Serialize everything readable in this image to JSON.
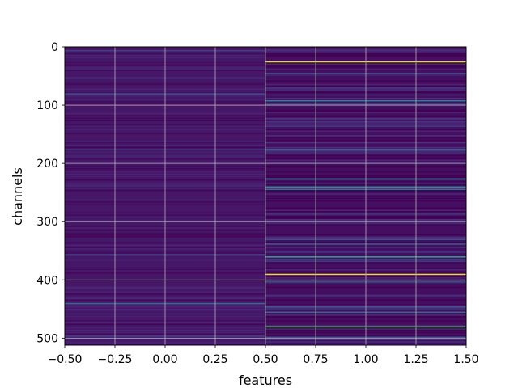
{
  "chart_data": {
    "type": "heatmap",
    "title": "",
    "xlabel": "features",
    "ylabel": "channels",
    "xlim": [
      -0.5,
      1.5
    ],
    "ylim": [
      512,
      0
    ],
    "x_ticks": [
      "−0.50",
      "−0.25",
      "0.00",
      "0.25",
      "0.50",
      "0.75",
      "1.00",
      "1.25",
      "1.50"
    ],
    "y_ticks": [
      "0",
      "100",
      "200",
      "300",
      "400",
      "500"
    ],
    "grid": true,
    "colormap": "viridis",
    "columns": [
      0,
      1
    ],
    "rows": 512,
    "base_values": [
      0.06,
      0.04
    ],
    "highlights": [
      {
        "column": 0,
        "channel": 6,
        "value": 0.2
      },
      {
        "column": 0,
        "channel": 80,
        "value": 0.25
      },
      {
        "column": 0,
        "channel": 176,
        "value": 0.2
      },
      {
        "column": 0,
        "channel": 356,
        "value": 0.2
      },
      {
        "column": 0,
        "channel": 440,
        "value": 0.35
      },
      {
        "column": 0,
        "channel": 496,
        "value": 0.2
      },
      {
        "column": 1,
        "channel": 25,
        "value": 0.95
      },
      {
        "column": 1,
        "channel": 45,
        "value": 0.25
      },
      {
        "column": 1,
        "channel": 92,
        "value": 0.45
      },
      {
        "column": 1,
        "channel": 98,
        "value": 0.2
      },
      {
        "column": 1,
        "channel": 175,
        "value": 0.3
      },
      {
        "column": 1,
        "channel": 226,
        "value": 0.35
      },
      {
        "column": 1,
        "channel": 240,
        "value": 0.5
      },
      {
        "column": 1,
        "channel": 244,
        "value": 0.4
      },
      {
        "column": 1,
        "channel": 330,
        "value": 0.25
      },
      {
        "column": 1,
        "channel": 338,
        "value": 0.3
      },
      {
        "column": 1,
        "channel": 360,
        "value": 0.6
      },
      {
        "column": 1,
        "channel": 390,
        "value": 0.95
      },
      {
        "column": 1,
        "channel": 402,
        "value": 0.25
      },
      {
        "column": 1,
        "channel": 446,
        "value": 0.3
      },
      {
        "column": 1,
        "channel": 455,
        "value": 0.35
      },
      {
        "column": 1,
        "channel": 480,
        "value": 0.75
      },
      {
        "column": 1,
        "channel": 498,
        "value": 0.3
      }
    ]
  }
}
